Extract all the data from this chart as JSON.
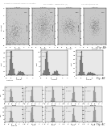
{
  "bg_color": "#ffffff",
  "header_text": "Placenta Trophoblast Immunomodulation",
  "header_mid": "Fig. 3, Better,  Meyers et al. (c)",
  "header_right": "U.S. Patent/3,843,741",
  "fig4a_label": "Fig. 4A",
  "fig4b_label": "Fig. 4B",
  "fig4c_label": "Fig. 4C",
  "scatter_facecolor": "#c8c8c8",
  "hist_facecolor": "#e8e8e8",
  "scatter_dot_color": "#222222",
  "hist_bar_color": "#888888",
  "hist_bar_edge": "#444444",
  "section_line_color": "#aaaaaa"
}
